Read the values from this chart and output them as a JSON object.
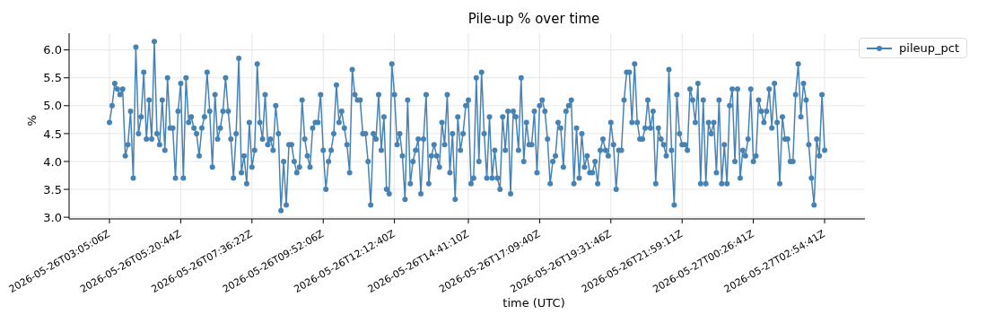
{
  "chart_data": {
    "type": "line",
    "title": "Pile-up % over time",
    "xlabel": "time (UTC)",
    "ylabel": "%",
    "categories": [
      "2026-05-26T03:05:06Z",
      null,
      null,
      null,
      null,
      null,
      null,
      null,
      null,
      null,
      null,
      null,
      null,
      null,
      null,
      null,
      null,
      null,
      null,
      null,
      null,
      null,
      null,
      null,
      null,
      null,
      null,
      "2026-05-26T05:20:44Z",
      null,
      null,
      null,
      null,
      null,
      null,
      null,
      null,
      null,
      null,
      null,
      null,
      null,
      null,
      null,
      null,
      null,
      null,
      null,
      null,
      null,
      null,
      null,
      null,
      null,
      null,
      "2026-05-26T07:36:22Z",
      null,
      null,
      null,
      null,
      null,
      null,
      null,
      null,
      null,
      null,
      null,
      null,
      null,
      null,
      null,
      null,
      null,
      null,
      null,
      null,
      null,
      null,
      null,
      null,
      null,
      null,
      "2026-05-26T09:52:06Z",
      null,
      null,
      null,
      null,
      null,
      null,
      null,
      null,
      null,
      null,
      null,
      null,
      null,
      null,
      null,
      null,
      null,
      null,
      null,
      null,
      null,
      null,
      null,
      null,
      null,
      null,
      "2026-05-26T12:12:40Z",
      null,
      null,
      null,
      null,
      null,
      null,
      null,
      null,
      null,
      null,
      null,
      null,
      null,
      null,
      null,
      null,
      null,
      null,
      null,
      null,
      null,
      null,
      null,
      null,
      null,
      null,
      null,
      "2026-05-26T14:41:10Z",
      null,
      null,
      null,
      null,
      null,
      null,
      null,
      null,
      null,
      null,
      null,
      null,
      null,
      null,
      null,
      null,
      null,
      null,
      null,
      null,
      null,
      null,
      null,
      null,
      null,
      null,
      "2026-05-26T17:09:40Z",
      null,
      null,
      null,
      null,
      null,
      null,
      null,
      null,
      null,
      null,
      null,
      null,
      null,
      null,
      null,
      null,
      null,
      null,
      null,
      null,
      null,
      null,
      null,
      null,
      null,
      null,
      "2026-05-26T19:31:46Z",
      null,
      null,
      null,
      null,
      null,
      null,
      null,
      null,
      null,
      null,
      null,
      null,
      null,
      null,
      null,
      null,
      null,
      null,
      null,
      null,
      null,
      null,
      null,
      null,
      null,
      null,
      "2026-05-26T21:59:11Z",
      null,
      null,
      null,
      null,
      null,
      null,
      null,
      null,
      null,
      null,
      null,
      null,
      null,
      null,
      null,
      null,
      null,
      null,
      null,
      null,
      null,
      null,
      null,
      null,
      null,
      null,
      "2026-05-27T00:26:41Z",
      null,
      null,
      null,
      null,
      null,
      null,
      null,
      null,
      null,
      null,
      null,
      null,
      null,
      null,
      null,
      null,
      null,
      null,
      null,
      null,
      null,
      null,
      null,
      null,
      null,
      null,
      "2026-05-27T02:54:41Z"
    ],
    "series": [
      {
        "name": "pileup_pct",
        "color": "#4682b4",
        "values": [
          4.7,
          5.0,
          5.4,
          5.3,
          5.2,
          5.3,
          4.1,
          4.3,
          4.9,
          3.7,
          6.05,
          4.5,
          4.8,
          5.6,
          4.4,
          5.1,
          4.4,
          6.15,
          4.5,
          4.3,
          5.1,
          4.2,
          5.5,
          4.6,
          4.6,
          3.7,
          4.9,
          5.4,
          3.7,
          5.5,
          4.7,
          4.8,
          4.6,
          4.5,
          4.1,
          4.6,
          4.8,
          5.6,
          4.9,
          3.9,
          5.2,
          4.4,
          4.6,
          4.9,
          5.5,
          4.9,
          4.4,
          3.7,
          4.5,
          5.85,
          3.8,
          4.1,
          3.6,
          4.7,
          3.9,
          4.2,
          5.75,
          4.7,
          4.4,
          5.2,
          4.3,
          4.4,
          4.2,
          5.0,
          4.5,
          3.12,
          4.0,
          3.22,
          4.3,
          4.3,
          4.0,
          3.8,
          3.9,
          5.1,
          4.4,
          4.1,
          3.9,
          4.6,
          4.7,
          4.7,
          5.2,
          4.2,
          3.5,
          4.0,
          4.2,
          4.5,
          5.37,
          4.7,
          4.9,
          4.6,
          4.3,
          3.8,
          5.65,
          5.2,
          5.1,
          5.1,
          4.5,
          4.5,
          4.0,
          3.22,
          4.5,
          4.4,
          5.2,
          4.2,
          4.8,
          3.5,
          3.42,
          5.75,
          5.2,
          4.3,
          4.5,
          4.1,
          3.32,
          5.1,
          3.6,
          4.0,
          4.2,
          4.4,
          3.42,
          4.4,
          5.2,
          3.6,
          4.1,
          4.3,
          4.1,
          3.9,
          4.7,
          4.3,
          5.2,
          3.8,
          4.5,
          3.32,
          4.8,
          4.2,
          4.5,
          5.0,
          5.1,
          3.6,
          3.7,
          5.5,
          4.0,
          5.6,
          4.5,
          3.7,
          4.8,
          3.7,
          4.2,
          3.7,
          3.5,
          4.8,
          4.2,
          4.9,
          3.42,
          4.9,
          4.8,
          4.2,
          5.5,
          4.0,
          4.7,
          4.3,
          4.3,
          4.9,
          3.8,
          5.0,
          5.1,
          4.9,
          4.4,
          3.6,
          4.0,
          4.1,
          4.7,
          4.6,
          3.9,
          4.9,
          5.0,
          5.1,
          3.6,
          4.6,
          3.7,
          4.5,
          3.9,
          4.1,
          3.8,
          3.8,
          4.0,
          3.6,
          4.2,
          4.4,
          4.2,
          4.1,
          4.7,
          4.3,
          3.5,
          4.2,
          4.2,
          5.1,
          5.6,
          5.6,
          4.7,
          5.75,
          4.7,
          4.4,
          4.4,
          4.6,
          5.1,
          4.6,
          4.9,
          3.6,
          4.6,
          4.4,
          4.3,
          4.1,
          5.65,
          4.2,
          3.22,
          5.2,
          4.5,
          4.3,
          4.3,
          4.2,
          5.3,
          5.1,
          4.7,
          5.4,
          3.6,
          5.1,
          3.6,
          4.7,
          4.5,
          4.7,
          3.8,
          5.1,
          3.6,
          4.3,
          3.6,
          5.0,
          5.3,
          4.0,
          5.3,
          3.7,
          4.2,
          4.1,
          4.4,
          5.3,
          4.0,
          4.1,
          5.1,
          4.9,
          4.7,
          4.9,
          5.3,
          4.6,
          5.4,
          4.7,
          3.6,
          4.8,
          4.4,
          4.4,
          4.0,
          4.0,
          5.2,
          5.75,
          4.8,
          5.4,
          5.1,
          4.3,
          3.7,
          3.22,
          4.4,
          4.1,
          5.2,
          4.2
        ]
      }
    ],
    "ylim": [
      2.97,
      6.3
    ],
    "yticks": [
      {
        "value": 3,
        "label": "3.0"
      },
      {
        "value": 3.5,
        "label": "3.5"
      },
      {
        "value": 4,
        "label": "4.0"
      },
      {
        "value": 4.5,
        "label": "4.5"
      },
      {
        "value": 5,
        "label": "5.0"
      },
      {
        "value": 5.5,
        "label": "5.5"
      },
      {
        "value": 6,
        "label": "6.0"
      }
    ],
    "grid": true,
    "legend": "top right",
    "marker": "circle",
    "line_style": "solid"
  }
}
